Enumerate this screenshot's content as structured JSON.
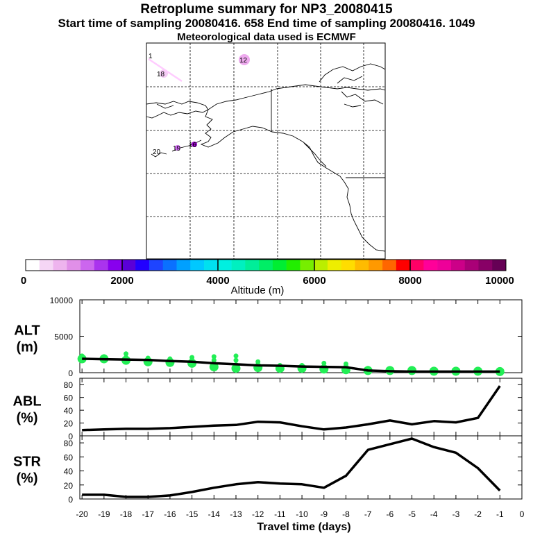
{
  "header": {
    "title": "Retroplume summary for NP3_20080415",
    "sampling": "Start time of sampling 20080416.   658     End time of sampling 20080416.  1049",
    "met": "Meteorological data used is ECMWF"
  },
  "map": {
    "plume_labels": [
      {
        "text": "1",
        "color": "#ffccff"
      },
      {
        "text": "12",
        "color": "#ee99ee"
      },
      {
        "text": "18",
        "color": "#ffccff"
      },
      {
        "text": "20",
        "color": "#ffffff"
      },
      {
        "text": "19",
        "color": "#cc66ee"
      },
      {
        "text": "16",
        "color": "#9900cc"
      }
    ]
  },
  "colorbar": {
    "label": "Altitude (m)",
    "ticks": [
      "0",
      "2000",
      "4000",
      "6000",
      "8000",
      "10000"
    ],
    "colors": [
      "#ffffff",
      "#f5d6f5",
      "#eeb4ee",
      "#e08fe8",
      "#cc66ee",
      "#aa33ee",
      "#8800ee",
      "#5a00d8",
      "#2200ff",
      "#1e44ff",
      "#0a70ff",
      "#00a0ff",
      "#00c8ff",
      "#00e0f0",
      "#00f0e0",
      "#00f0c0",
      "#00ee99",
      "#00ee66",
      "#00ee33",
      "#22ee00",
      "#77ee00",
      "#bbee00",
      "#eeee00",
      "#ffdd00",
      "#ffbb00",
      "#ff9900",
      "#ff6600",
      "#ff0000",
      "#ff0066",
      "#ff0099",
      "#ee0099",
      "#cc0088",
      "#aa0077",
      "#880066",
      "#660055"
    ]
  },
  "chart_data": [
    {
      "type": "line",
      "panel": "ALT",
      "ylabel": "ALT\n(m)",
      "ylabel_lines": [
        "ALT",
        "(m)"
      ],
      "ylim": [
        0,
        10000
      ],
      "yticks": [
        "0",
        "5000",
        "10000"
      ],
      "x": [
        -20,
        -19,
        -18,
        -17,
        -16,
        -15,
        -14,
        -13,
        -12,
        -11,
        -10,
        -9,
        -8,
        -7,
        -6,
        -5,
        -4,
        -3,
        -2,
        -1
      ],
      "values": [
        1900,
        1850,
        1800,
        1750,
        1600,
        1500,
        1300,
        1150,
        1000,
        950,
        850,
        800,
        750,
        300,
        200,
        150,
        150,
        150,
        150,
        150
      ],
      "markers": [
        {
          "x": -20,
          "values": [
            1900,
            2300
          ]
        },
        {
          "x": -19,
          "values": [
            1900,
            2200
          ]
        },
        {
          "x": -18,
          "values": [
            1700,
            2100,
            2600
          ]
        },
        {
          "x": -17,
          "values": [
            1500,
            2000
          ]
        },
        {
          "x": -16,
          "values": [
            1400,
            1900
          ]
        },
        {
          "x": -15,
          "values": [
            1300,
            1700,
            2100
          ]
        },
        {
          "x": -14,
          "values": [
            800,
            1200,
            1700,
            2200
          ]
        },
        {
          "x": -13,
          "values": [
            600,
            1100,
            1700,
            2300
          ]
        },
        {
          "x": -12,
          "values": [
            700,
            1100,
            1500
          ]
        },
        {
          "x": -11,
          "values": [
            600,
            1000
          ]
        },
        {
          "x": -10,
          "values": [
            600,
            1000
          ]
        },
        {
          "x": -9,
          "values": [
            500,
            800,
            1300
          ]
        },
        {
          "x": -8,
          "values": [
            400,
            900,
            1200
          ]
        },
        {
          "x": -7,
          "values": [
            300,
            600
          ]
        },
        {
          "x": -6,
          "values": [
            300
          ]
        },
        {
          "x": -5,
          "values": [
            300
          ]
        },
        {
          "x": -4,
          "values": [
            200
          ]
        },
        {
          "x": -3,
          "values": [
            200
          ]
        },
        {
          "x": -2,
          "values": [
            200
          ]
        },
        {
          "x": -1,
          "values": [
            150
          ]
        }
      ]
    },
    {
      "type": "line",
      "panel": "ABL",
      "ylabel": "ABL\n(%)",
      "ylabel_lines": [
        "ABL",
        "(%)"
      ],
      "ylim": [
        0,
        90
      ],
      "yticks": [
        "0",
        "20",
        "40",
        "60",
        "80"
      ],
      "x": [
        -20,
        -19,
        -18,
        -17,
        -16,
        -15,
        -14,
        -13,
        -12,
        -11,
        -10,
        -9,
        -8,
        -7,
        -6,
        -5,
        -4,
        -3,
        -2,
        -1
      ],
      "values": [
        9,
        10,
        11,
        11,
        12,
        14,
        16,
        17,
        22,
        21,
        15,
        10,
        13,
        18,
        24,
        18,
        23,
        21,
        28,
        78
      ]
    },
    {
      "type": "line",
      "panel": "STR",
      "ylabel": "STR\n(%)",
      "ylabel_lines": [
        "STR",
        "(%)"
      ],
      "ylim": [
        0,
        90
      ],
      "yticks": [
        "0",
        "20",
        "40",
        "60",
        "80"
      ],
      "x": [
        -20,
        -19,
        -18,
        -17,
        -16,
        -15,
        -14,
        -13,
        -12,
        -11,
        -10,
        -9,
        -8,
        -7,
        -6,
        -5,
        -4,
        -3,
        -2,
        -1
      ],
      "values": [
        6,
        6,
        3,
        3,
        5,
        10,
        16,
        21,
        24,
        22,
        21,
        16,
        33,
        70,
        78,
        86,
        74,
        66,
        44,
        12
      ]
    }
  ],
  "x_axis": {
    "ticks": [
      "-20",
      "-19",
      "-18",
      "-17",
      "-16",
      "-15",
      "-14",
      "-13",
      "-12",
      "-11",
      "-10",
      "-9",
      "-8",
      "-7",
      "-6",
      "-5",
      "-4",
      "-3",
      "-2",
      "-1",
      "0"
    ],
    "label": "Travel time (days)"
  }
}
